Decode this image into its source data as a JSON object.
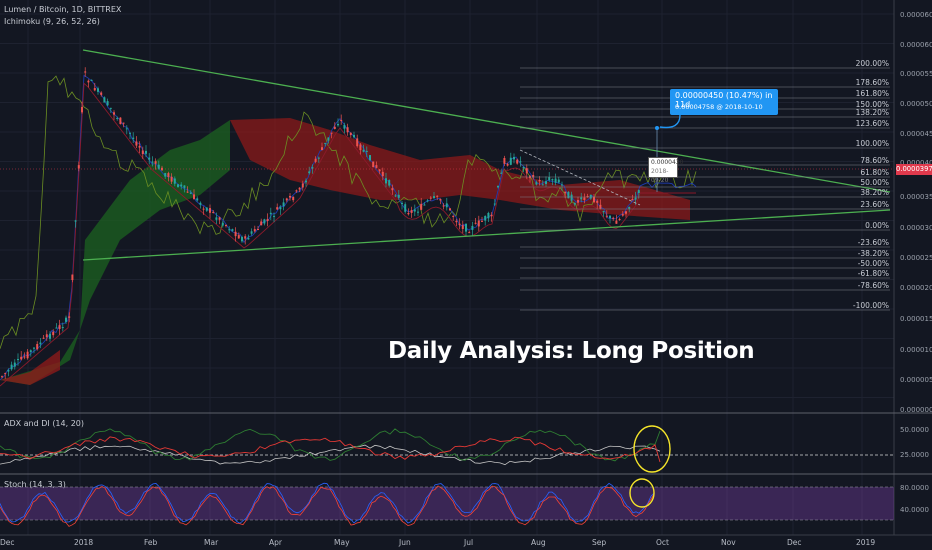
{
  "header": {
    "symbol_line": "Lumen / Bitcoin, 1D, BITTREX",
    "indicator_line": "Ichimoku (9, 26, 52, 26)"
  },
  "panes": {
    "adx_title": "ADX and DI (14, 20)",
    "stoch_title": "Stoch (14, 3, 3)"
  },
  "overlay_title": "Daily Analysis: Long Position",
  "callout": {
    "line1": "0.00000450 (10.47%) in 11d",
    "line2": "0.00004758 @ 2018-10-10"
  },
  "small_box": {
    "price": "0.0000430",
    "date": "2018-09-20"
  },
  "current_price": "0.00003972",
  "fib_levels": [
    "200.00%",
    "178.60%",
    "161.80%",
    "150.00%",
    "138.20%",
    "123.60%",
    "100.00%",
    "78.60%",
    "61.80%",
    "50.00%",
    "38.20%",
    "23.60%",
    "0.00%",
    "-23.60%",
    "-38.20%",
    "-50.00%",
    "-61.80%",
    "-78.60%",
    "-100.00%"
  ],
  "price_axis": [
    "0.00006000",
    "0.00006000",
    "0.00005500",
    "0.00005000",
    "0.00004500",
    "0.00004000",
    "0.00003500",
    "0.00003000",
    "0.00002500",
    "0.00002000",
    "0.00001500",
    "0.00001000",
    "0.00000500",
    "0.00000000"
  ],
  "adx_axis": [
    "50.0000",
    "25.0000"
  ],
  "stoch_axis": [
    "80.0000",
    "40.0000"
  ],
  "x_axis": [
    "Dec",
    "2018",
    "Feb",
    "Mar",
    "Apr",
    "May",
    "Jun",
    "Jul",
    "Aug",
    "Sep",
    "Oct",
    "Nov",
    "Dec",
    "2019"
  ],
  "colors": {
    "background": "#131722",
    "trendline": "#4caf50",
    "bull": "#26a69a",
    "bear": "#ef5350",
    "callout": "#2196f3",
    "highlight_circle": "#f5e52a",
    "stoch_band": "#7b3fa8"
  }
}
